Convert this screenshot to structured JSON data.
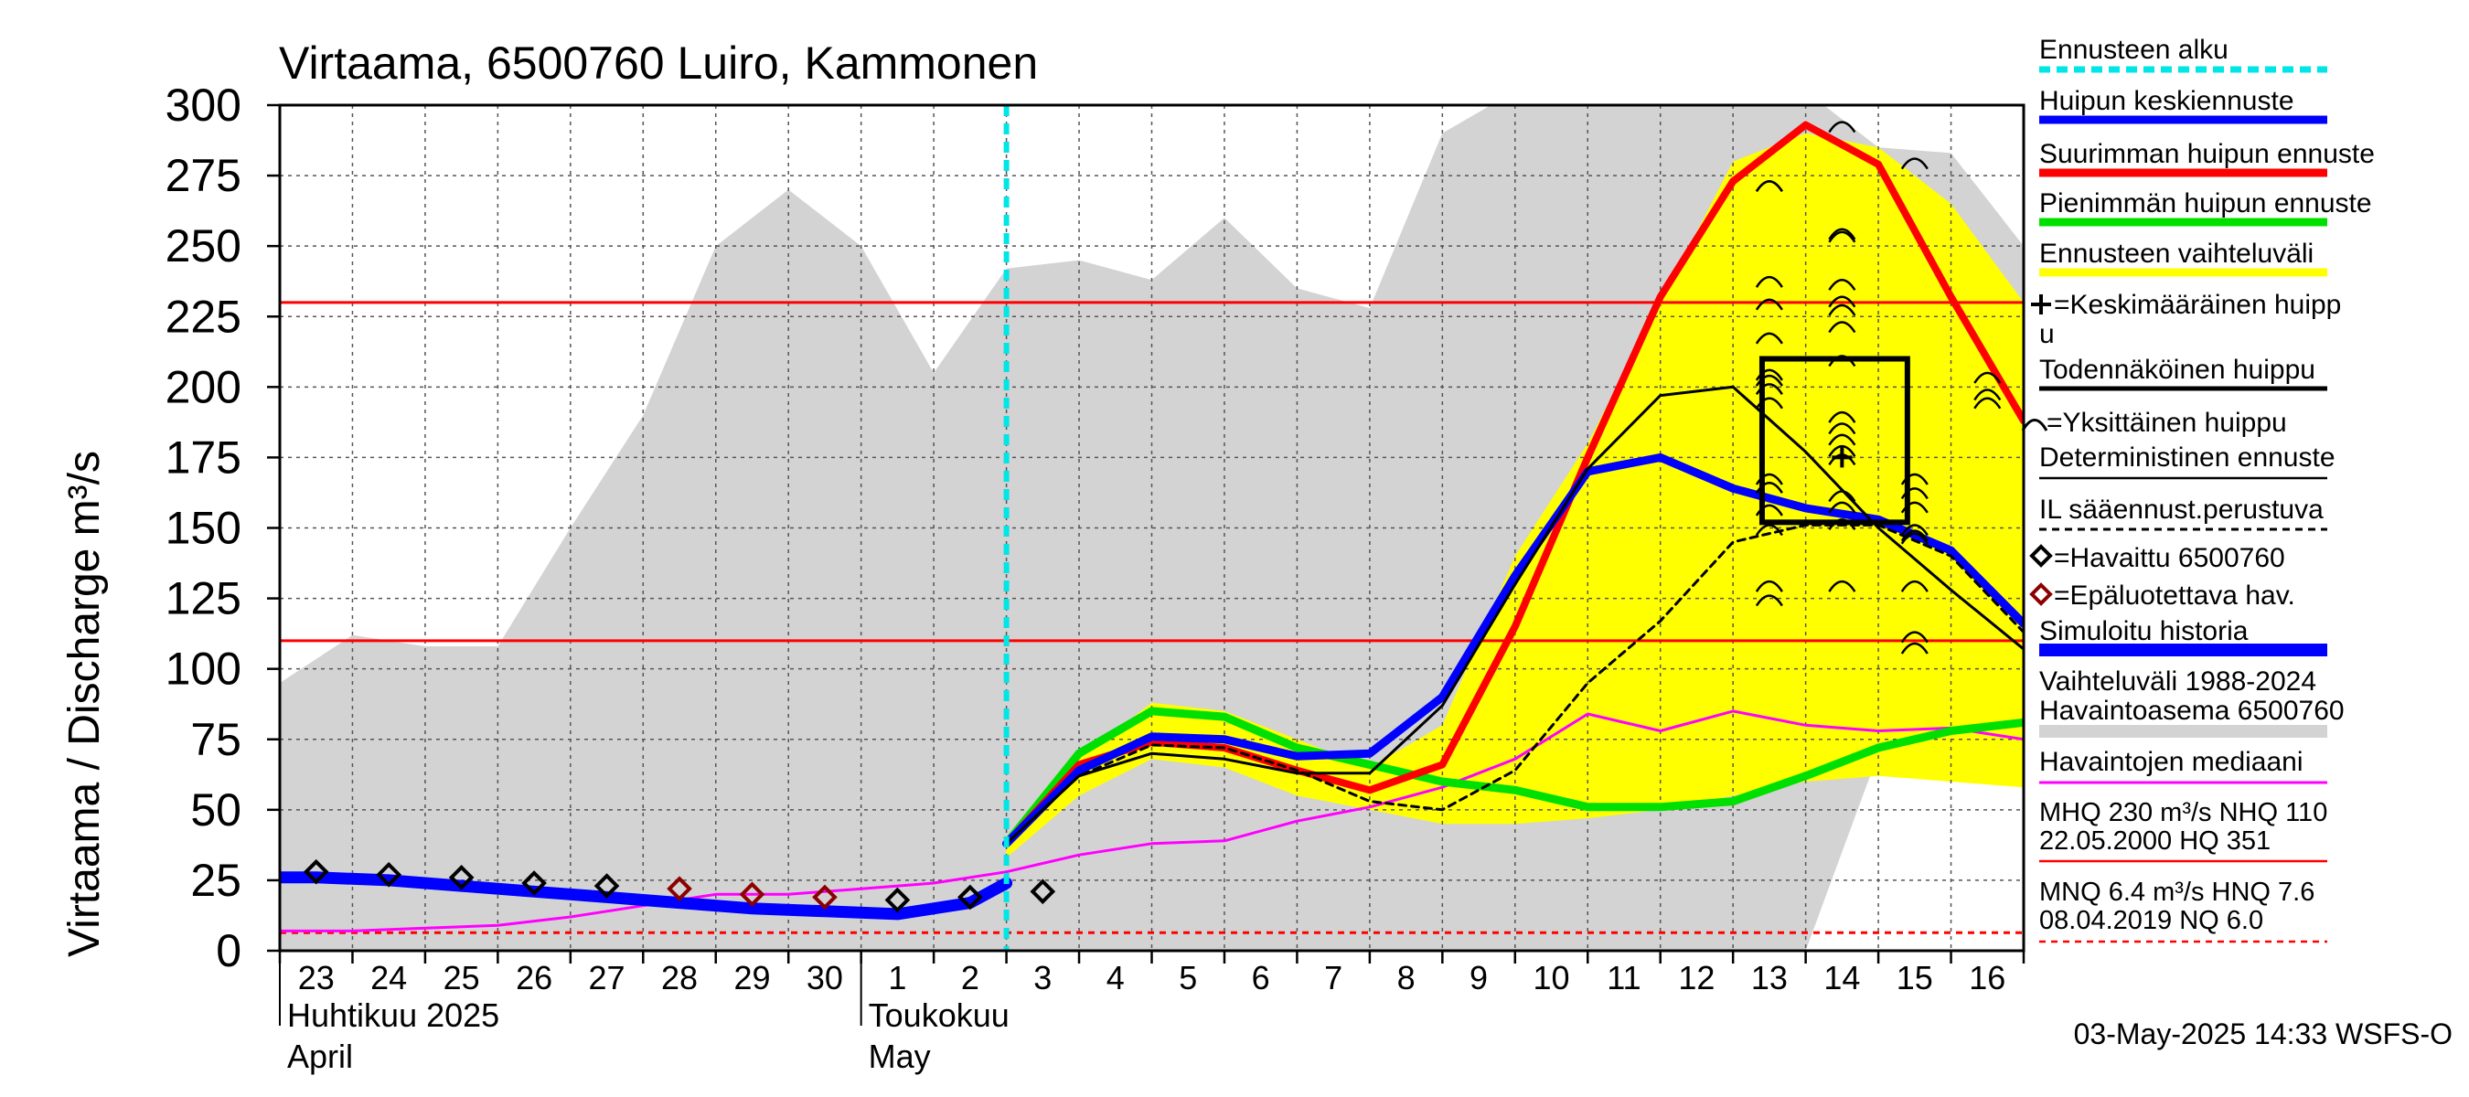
{
  "chart_data": {
    "type": "line",
    "title": "Virtaama, 6500760 Luiro, Kammonen",
    "ylabel": "Virtaama / Discharge   m³/s",
    "ylim": [
      0,
      300
    ],
    "yticks": [
      0,
      25,
      50,
      75,
      100,
      125,
      150,
      175,
      200,
      225,
      250,
      275,
      300
    ],
    "xlim": [
      -0.5,
      23.5
    ],
    "day_labels": [
      "23",
      "24",
      "25",
      "26",
      "27",
      "28",
      "29",
      "30",
      "1",
      "2",
      "3",
      "4",
      "5",
      "6",
      "7",
      "8",
      "9",
      "10",
      "11",
      "12",
      "13",
      "14",
      "15",
      "16"
    ],
    "month_labels": [
      {
        "fi": "Huhtikuu  2025",
        "en": "April",
        "start_index": 0
      },
      {
        "fi": "Toukokuu",
        "en": "May",
        "start_index": 8
      }
    ],
    "forecast_start_x": 9.5,
    "reference_lines": {
      "MHQ": 230,
      "NHQ": 110,
      "MNQ": 6.4,
      "NQ": 6.0
    },
    "history_range": {
      "x": [
        -0.5,
        0.5,
        1.5,
        2.5,
        3.5,
        4.5,
        5.5,
        6.5,
        7.5,
        8.5,
        9.5,
        10.5,
        11.5,
        12.5,
        13.5,
        14.5,
        15.5,
        16.5,
        17.5,
        18.5,
        19.5,
        20.5,
        21.5,
        22.5,
        23.5
      ],
      "upper": [
        95,
        112,
        108,
        108,
        150,
        190,
        250,
        270,
        250,
        205,
        242,
        245,
        238,
        260,
        235,
        228,
        290,
        305,
        305,
        305,
        305,
        305,
        285,
        283,
        250
      ],
      "lower": [
        0,
        0,
        0,
        0,
        0,
        0,
        0,
        0,
        0,
        0,
        0,
        0,
        0,
        0,
        0,
        0,
        0,
        0,
        0,
        0,
        0,
        0,
        70,
        65,
        63
      ]
    },
    "forecast_band": {
      "x": [
        9.5,
        10.5,
        11.5,
        12.5,
        13.5,
        14.5,
        15.5,
        16.5,
        17.5,
        18.5,
        19.5,
        20.5,
        21.5,
        22.5,
        23.5
      ],
      "upper": [
        40,
        68,
        88,
        85,
        75,
        65,
        80,
        140,
        180,
        230,
        280,
        290,
        285,
        265,
        230
      ],
      "lower": [
        33,
        55,
        68,
        65,
        55,
        50,
        45,
        45,
        47,
        50,
        55,
        60,
        62,
        60,
        58
      ]
    },
    "series": [
      {
        "name": "Suurimman huipun ennuste",
        "color": "#ff0000",
        "x": [
          9.5,
          10.5,
          11.5,
          12.5,
          13.5,
          14.5,
          15.5,
          16.5,
          17.5,
          18.5,
          19.5,
          20.5,
          21.5,
          22.5,
          23.5
        ],
        "values": [
          38,
          66,
          74,
          72,
          64,
          57,
          66,
          115,
          175,
          232,
          273,
          293,
          279,
          232,
          188
        ]
      },
      {
        "name": "Pienimmän huipun ennuste",
        "color": "#00e000",
        "x": [
          9.5,
          10.5,
          11.5,
          12.5,
          13.5,
          14.5,
          15.5,
          16.5,
          17.5,
          18.5,
          19.5,
          20.5,
          21.5,
          22.5,
          23.5
        ],
        "values": [
          38,
          70,
          85,
          83,
          72,
          66,
          60,
          57,
          51,
          51,
          53,
          62,
          72,
          78,
          81
        ]
      },
      {
        "name": "Huipun keskiennuste",
        "color": "#0000ff",
        "x": [
          9.5,
          10.5,
          11.5,
          12.5,
          13.5,
          14.5,
          15.5,
          16.5,
          17.5,
          18.5,
          19.5,
          20.5,
          21.5,
          22.5,
          23.5
        ],
        "values": [
          38,
          64,
          76,
          75,
          69,
          70,
          90,
          133,
          170,
          175,
          164,
          157,
          153,
          142,
          116
        ]
      },
      {
        "name": "Deterministinen ennuste",
        "color": "#000000",
        "x": [
          9.5,
          10.5,
          11.5,
          12.5,
          13.5,
          14.5,
          15.5,
          16.5,
          17.5,
          18.5,
          19.5,
          20.5,
          21.5,
          22.5,
          23.5
        ],
        "values": [
          38,
          62,
          70,
          68,
          63,
          63,
          87,
          130,
          171,
          197,
          200,
          177,
          150,
          128,
          107
        ]
      },
      {
        "name": "IL sääennust.perustuva",
        "color": "#000000",
        "x": [
          9.5,
          10.5,
          11.5,
          12.5,
          13.5,
          14.5,
          15.5,
          16.5,
          17.5,
          18.5,
          19.5,
          20.5,
          21.5,
          22.5,
          23.5
        ],
        "values": [
          38,
          62,
          73,
          72,
          64,
          53,
          50,
          64,
          95,
          117,
          145,
          151,
          151,
          140,
          113
        ]
      },
      {
        "name": "Simuloitu historia",
        "color": "#0000ff",
        "x": [
          -0.5,
          0,
          1,
          2,
          3,
          4,
          5,
          6,
          7,
          8,
          9,
          9.5
        ],
        "values": [
          26,
          26,
          25,
          23,
          21,
          19,
          17,
          15,
          14,
          13,
          17,
          24
        ]
      },
      {
        "name": "Havaintojen mediaani",
        "color": "#ff00ff",
        "x": [
          -0.5,
          0.5,
          1.5,
          2.5,
          3.5,
          4.5,
          5.5,
          6.5,
          7.5,
          8.5,
          9.5,
          10.5,
          11.5,
          12.5,
          13.5,
          14.5,
          15.5,
          16.5,
          17.5,
          18.5,
          19.5,
          20.5,
          21.5,
          22.5,
          23.5
        ],
        "values": [
          7,
          7,
          8,
          9,
          12,
          16,
          20,
          20,
          22,
          24,
          28,
          34,
          38,
          39,
          46,
          51,
          58,
          68,
          84,
          78,
          85,
          80,
          78,
          79,
          75
        ]
      }
    ],
    "observed": {
      "name": "Havaittu 6500760",
      "x": [
        0,
        1,
        2,
        3,
        4,
        8,
        9,
        10
      ],
      "values": [
        28,
        27,
        26,
        24,
        23,
        18,
        19,
        21
      ]
    },
    "unreliable_observed": {
      "name": "Epäluotettava hav.",
      "x": [
        5,
        6,
        7
      ],
      "values": [
        22,
        20,
        19
      ]
    },
    "individual_peaks": {
      "x": [
        20,
        20,
        20,
        20,
        20,
        20,
        20,
        20,
        20,
        20,
        20,
        20,
        20,
        20,
        20,
        21,
        21,
        21,
        21,
        21,
        21,
        21,
        21,
        21,
        21,
        21,
        21,
        21,
        21,
        21,
        21,
        21,
        22,
        22,
        22,
        22,
        22,
        22,
        22,
        22,
        22,
        22,
        23,
        23,
        23
      ],
      "values": [
        272,
        238,
        230,
        218,
        205,
        203,
        200,
        168,
        165,
        157,
        150,
        130,
        272,
        195,
        125,
        293,
        255,
        237,
        231,
        222,
        210,
        190,
        186,
        182,
        178,
        175,
        162,
        158,
        152,
        130,
        254,
        228,
        280,
        163,
        158,
        150,
        148,
        130,
        112,
        108,
        147,
        168,
        195,
        204,
        198
      ]
    },
    "most_probable_peak": {
      "x_range": [
        19.9,
        21.9
      ],
      "y_range": [
        152,
        210
      ]
    },
    "mean_peak": {
      "x": 21,
      "value": 175
    },
    "legend": [
      "Ennusteen alku",
      "Huipun keskiennuste",
      "Suurimman huipun ennuste",
      "Pienimmän huipun ennuste",
      "Ennusteen vaihteluväli",
      "=Keskimääräinen huipp",
      "u",
      "Todennäköinen huippu",
      "=Yksittäinen huippu",
      "Deterministinen ennuste",
      "IL sääennust.perustuva",
      "=Havaittu 6500760",
      "=Epäluotettava hav.",
      "Simuloitu historia",
      "Vaihteluväli 1988-2024",
      " Havaintoasema 6500760",
      "Havaintojen mediaani"
    ],
    "stats": [
      "MHQ  230 m³/s NHQ  110",
      "22.05.2000 HQ  351",
      "MNQ  6.4 m³/s HNQ  7.6",
      "08.04.2019 NQ  6.0"
    ],
    "timestamp": "03-May-2025 14:33 WSFS-O",
    "colors": {
      "history_band": "#d3d3d3",
      "forecast_band": "#ffff00",
      "max_forecast": "#ff0000",
      "min_forecast": "#00e000",
      "mean_forecast": "#0000ff",
      "median": "#ff00ff",
      "reference": "#ff0000",
      "forecast_start": "#00e5e5",
      "unreliable": "#8b0000"
    }
  }
}
